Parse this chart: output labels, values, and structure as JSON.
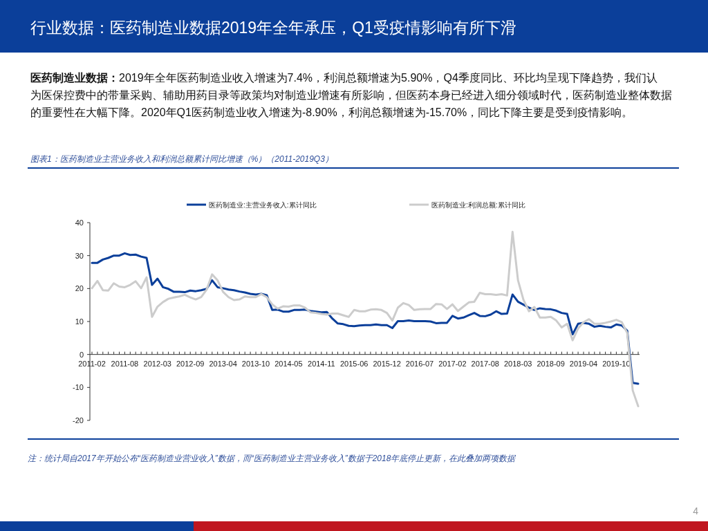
{
  "chart_data": {
    "type": "line",
    "title": "行业数据：医药制造业数据2019年全年承压，Q1受疫情影响有所下滑",
    "subtitle": "图表1：医药制造业主营业务收入和利润总额累计同比增速（%）（2011-2019Q3）",
    "annotations": [
      "医药制造业数据：",
      "2019年全年医药制造业收入增速为7.4%，利润总额增速为5.90%，Q4季度同比、环比均呈现下降趋势，我们认为医保控费中的带量采购、辅助用药目录等政策均对制造业增速有所影响，但医药本身已经进入细分领域时代，医药制造业整体数据的重要性在大幅下降。2020年Q1医药制造业收入增速为-8.90%，利润总额增速为-15.70%，同比下降主要是受到疫情影响。",
      "注：统计局自2017年开始公布“医药制造业营业收入”数据，而“医药制造业主营业务收入”数据于2018年底停止更新，在此叠加两项数据",
      "4"
    ],
    "categories": [
      "2011-02",
      null,
      null,
      null,
      null,
      null,
      "2011-08",
      null,
      null,
      null,
      null,
      null,
      "2012-03",
      null,
      null,
      null,
      null,
      null,
      "2012-09",
      null,
      null,
      null,
      null,
      null,
      "2013-04",
      null,
      null,
      null,
      null,
      null,
      "2013-10",
      null,
      null,
      null,
      null,
      null,
      "2014-05",
      null,
      null,
      null,
      null,
      null,
      "2014-11",
      null,
      null,
      null,
      null,
      null,
      "2015-06",
      null,
      null,
      null,
      null,
      null,
      "2015-12",
      null,
      null,
      null,
      null,
      null,
      "2016-07",
      null,
      null,
      null,
      null,
      null,
      "2017-02",
      null,
      null,
      null,
      null,
      null,
      "2017-08",
      null,
      null,
      null,
      null,
      null,
      "2018-03",
      null,
      null,
      null,
      null,
      null,
      "2018-09",
      null,
      null,
      null,
      null,
      null,
      "2019-04",
      null,
      null,
      null,
      null,
      null,
      "2019-10",
      null,
      null,
      null,
      null
    ],
    "series": [
      {
        "name": "医药制造业:主营业务收入:累计同比",
        "color": "#0b3f9a",
        "values": [
          27.8,
          27.8,
          28.8,
          29.3,
          30.0,
          30.0,
          30.7,
          30.2,
          30.3,
          29.7,
          29.3,
          21.1,
          23.0,
          20.4,
          19.9,
          19.0,
          19.0,
          18.9,
          19.4,
          19.2,
          19.5,
          19.9,
          22.5,
          20.4,
          20.1,
          19.7,
          19.5,
          19.1,
          18.8,
          18.4,
          18.2,
          18.4,
          18.0,
          13.5,
          13.6,
          13.0,
          13.0,
          13.5,
          13.5,
          13.6,
          13.2,
          13.0,
          12.8,
          12.9,
          10.9,
          9.4,
          9.2,
          8.7,
          8.6,
          8.8,
          8.9,
          8.9,
          9.1,
          8.9,
          8.9,
          8.0,
          10.1,
          10.1,
          10.3,
          10.1,
          10.1,
          10.1,
          10.0,
          9.5,
          9.6,
          9.6,
          11.7,
          10.9,
          11.2,
          11.9,
          12.6,
          11.7,
          11.6,
          12.1,
          13.1,
          12.3,
          12.4,
          18.2,
          16.0,
          15.1,
          14.2,
          13.5,
          14.0,
          13.8,
          13.7,
          13.3,
          12.6,
          12.3,
          6.1,
          9.3,
          9.6,
          9.3,
          8.4,
          8.7,
          8.4,
          8.2,
          9.1,
          8.8,
          7.2,
          -8.6,
          -8.9
        ]
      },
      {
        "name": "医药制造业:利润总额:累计同比",
        "color": "#cccccc",
        "values": [
          20.1,
          22.3,
          19.5,
          19.4,
          21.6,
          20.6,
          20.4,
          21.1,
          22.2,
          20.1,
          23.4,
          11.4,
          14.5,
          15.9,
          16.9,
          17.3,
          17.6,
          18.1,
          17.3,
          16.7,
          17.4,
          19.7,
          24.3,
          22.5,
          19.0,
          17.4,
          16.5,
          16.7,
          17.6,
          17.4,
          17.4,
          18.3,
          17.4,
          15.2,
          13.9,
          14.6,
          14.5,
          14.9,
          14.9,
          14.2,
          12.8,
          12.6,
          12.3,
          12.1,
          12.4,
          12.4,
          11.9,
          11.4,
          13.5,
          13.1,
          13.1,
          13.6,
          13.7,
          13.5,
          12.6,
          10.3,
          14.2,
          15.6,
          15.0,
          13.5,
          13.7,
          13.8,
          13.8,
          15.3,
          15.2,
          13.8,
          15.2,
          13.2,
          14.5,
          15.8,
          16.0,
          18.7,
          18.3,
          18.3,
          18.1,
          18.3,
          17.9,
          37.2,
          22.5,
          16.6,
          13.1,
          14.4,
          11.2,
          11.2,
          11.4,
          10.3,
          8.2,
          9.3,
          4.3,
          7.9,
          9.8,
          10.7,
          9.3,
          9.3,
          9.6,
          10.0,
          10.5,
          9.8,
          6.5,
          -10.9,
          -15.7
        ]
      }
    ],
    "ylim": [
      -20,
      40
    ],
    "yticks": [
      -20,
      -10,
      0,
      10,
      20,
      30,
      40
    ],
    "legend": "top",
    "marker": "none",
    "line_style": "solid"
  }
}
